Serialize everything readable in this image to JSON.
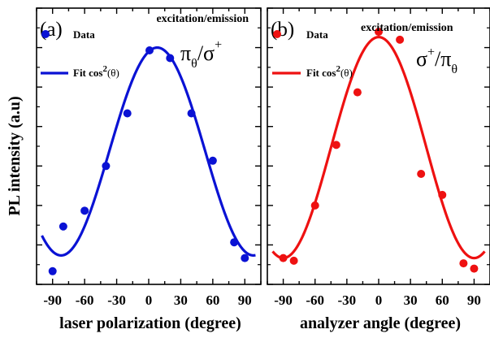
{
  "ylabel": "PL intensity (a.u)",
  "chart_data": [
    {
      "type": "scatter",
      "panel_label": "(a)",
      "xlabel": "laser polarization (degree)",
      "excitation_label": "excitation/emission",
      "polarization_label": "π",
      "polarization_sub": "θ",
      "polarization_sep": "/",
      "polarization_label_2": "σ",
      "polarization_sup_2": "+",
      "xlim": [
        -105,
        105
      ],
      "ylim": [
        0.0,
        1.05
      ],
      "xticks": [
        -90,
        -60,
        -30,
        0,
        30,
        60,
        90
      ],
      "color": "#0a12d4",
      "series": [
        {
          "name": "Data",
          "kind": "points",
          "x": [
            -90,
            -80,
            -60,
            -40,
            -20,
            20,
            40,
            60,
            80,
            90
          ],
          "y": [
            0.05,
            0.22,
            0.28,
            0.45,
            0.65,
            0.86,
            0.65,
            0.47,
            0.16,
            0.1
          ]
        },
        {
          "name": "Fit cos",
          "name_sup": "2",
          "name_suffix": "(θ)",
          "kind": "fit",
          "model": "y0 + A*cos^2(x - x0)",
          "params": {
            "y0": 0.11,
            "A": 0.79,
            "x0": 8
          },
          "x_range": [
            -100,
            100
          ]
        }
      ]
    },
    {
      "type": "scatter",
      "panel_label": "(b)",
      "xlabel": "analyzer angle (degree)",
      "excitation_label": "excitation/emission",
      "polarization_label": "σ",
      "polarization_sup": "+",
      "polarization_sep": "/",
      "polarization_label_2": "π",
      "polarization_sub_2": "θ",
      "xlim": [
        -105,
        105
      ],
      "ylim": [
        0.0,
        1.05
      ],
      "xticks": [
        -90,
        -60,
        -30,
        0,
        30,
        60,
        90
      ],
      "color": "#ee1111",
      "series": [
        {
          "name": "Data",
          "kind": "points",
          "x": [
            -90,
            -80,
            -60,
            -40,
            -20,
            0,
            20,
            40,
            60,
            80,
            90
          ],
          "y": [
            0.1,
            0.09,
            0.3,
            0.53,
            0.73,
            0.96,
            0.93,
            0.42,
            0.34,
            0.08,
            0.06
          ]
        },
        {
          "name": "Fit cos",
          "name_sup": "2",
          "name_suffix": "(θ)",
          "kind": "fit",
          "model": "y0 + A*cos^2(x - x0)",
          "params": {
            "y0": 0.1,
            "A": 0.84,
            "x0": 0
          },
          "x_range": [
            -100,
            100
          ]
        }
      ]
    }
  ]
}
